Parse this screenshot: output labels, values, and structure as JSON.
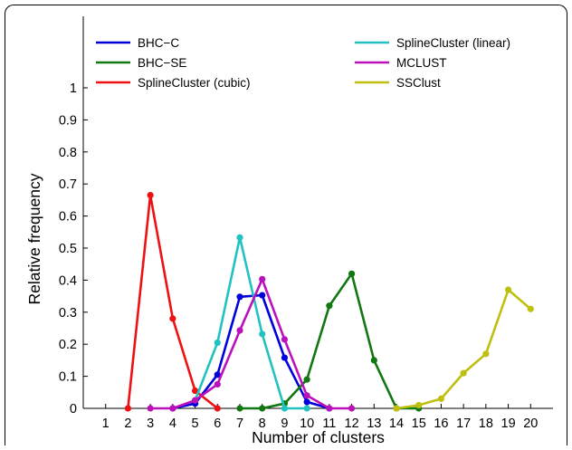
{
  "chart_data": {
    "type": "line",
    "xlabel": "Number of clusters",
    "ylabel": "Relative frequency",
    "xlim": [
      0,
      21
    ],
    "ylim": [
      0,
      1.0
    ],
    "x_ticks": [
      "1",
      "2",
      "3",
      "4",
      "5",
      "6",
      "7",
      "8",
      "9",
      "10",
      "11",
      "12",
      "13",
      "14",
      "15",
      "16",
      "17",
      "18",
      "19",
      "20"
    ],
    "y_ticks": [
      "0",
      "0.1",
      "0.2",
      "0.3",
      "0.4",
      "0.5",
      "0.6",
      "0.7",
      "0.8",
      "0.9",
      "1"
    ],
    "grid": false,
    "legend_position": "top",
    "series": [
      {
        "name": "BHC−C",
        "color": "#0000dd",
        "x": [
          4,
          5,
          6,
          7,
          8,
          9,
          10,
          11
        ],
        "y": [
          0.0,
          0.015,
          0.105,
          0.348,
          0.353,
          0.158,
          0.02,
          0.0
        ]
      },
      {
        "name": "BHC−SE",
        "color": "#117711",
        "x": [
          7,
          8,
          9,
          10,
          11,
          12,
          13,
          14,
          15
        ],
        "y": [
          0.0,
          0.0,
          0.015,
          0.09,
          0.32,
          0.42,
          0.15,
          0.0,
          0.0
        ]
      },
      {
        "name": "SplineCluster (cubic)",
        "color": "#ee1111",
        "x": [
          2,
          3,
          4,
          5,
          6
        ],
        "y": [
          0.0,
          0.665,
          0.28,
          0.055,
          0.0
        ]
      },
      {
        "name": "SplineCluster (linear)",
        "color": "#22c2c2",
        "x": [
          5,
          6,
          7,
          8,
          9,
          10
        ],
        "y": [
          0.025,
          0.205,
          0.533,
          0.232,
          0.0,
          0.0
        ]
      },
      {
        "name": "MCLUST",
        "color": "#bb11bb",
        "x": [
          3,
          4,
          5,
          6,
          7,
          8,
          9,
          10,
          11,
          12
        ],
        "y": [
          0.0,
          0.0,
          0.025,
          0.075,
          0.243,
          0.403,
          0.215,
          0.04,
          0.0,
          0.0
        ]
      },
      {
        "name": "SSClust",
        "color": "#bfbf10",
        "x": [
          14,
          15,
          16,
          17,
          18,
          19,
          20
        ],
        "y": [
          0.0,
          0.01,
          0.03,
          0.11,
          0.17,
          0.37,
          0.31
        ]
      }
    ]
  }
}
